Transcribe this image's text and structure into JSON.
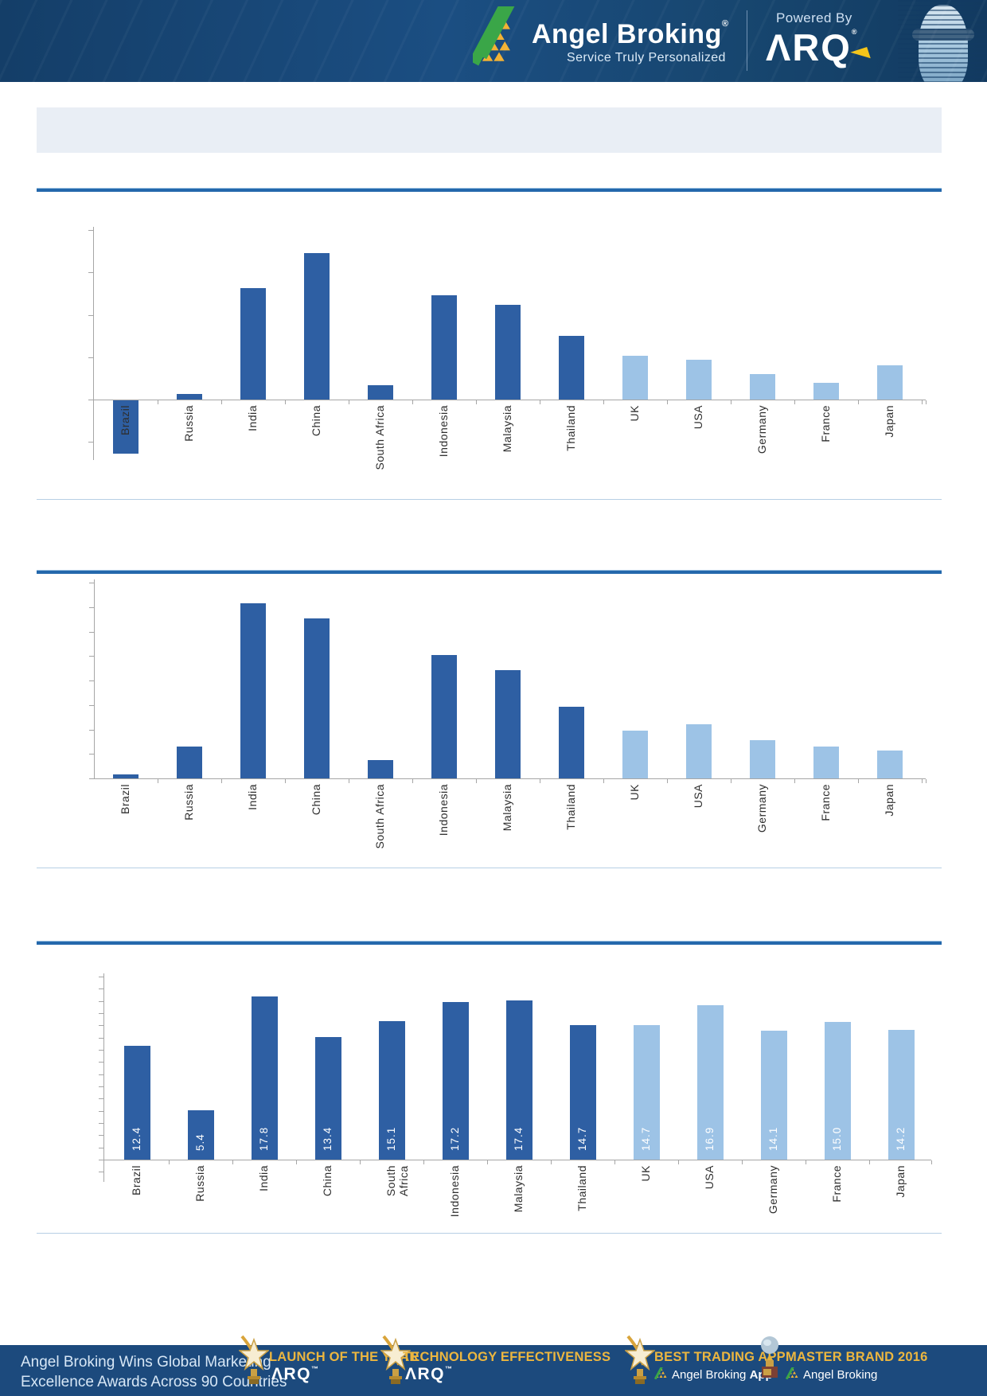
{
  "header": {
    "brand": "Angel Broking",
    "brand_reg": "®",
    "tagline": "Service Truly Personalized",
    "powered_by": "Powered By",
    "arq_logo": "ΛRQ",
    "arq_reg": "®"
  },
  "banner": {
    "text": ""
  },
  "chart_data": [
    {
      "type": "bar",
      "title": "",
      "categories": [
        "Brazil",
        "Russia",
        "India",
        "China",
        "South Africa",
        "Indonesia",
        "Malaysia",
        "Thailand",
        "UK",
        "USA",
        "Germany",
        "France",
        "Japan"
      ],
      "values": [
        -1.25,
        0.13,
        2.63,
        3.45,
        0.34,
        2.46,
        2.23,
        1.5,
        1.03,
        0.94,
        0.6,
        0.39,
        0.81
      ],
      "ylim": [
        -2,
        4
      ],
      "ytick_interval": 1,
      "axis_tick_labels_visible": false,
      "value_labels": false,
      "grid": false,
      "legend": "none",
      "bar_color_dark": "#2e5fa3",
      "bar_color_light": "#9dc3e6",
      "light_from_index": 8,
      "values_estimated_from_ticks": true
    },
    {
      "type": "bar",
      "title": "",
      "categories": [
        "Brazil",
        "Russia",
        "India",
        "China",
        "South Africa",
        "Indonesia",
        "Malaysia",
        "Thailand",
        "UK",
        "USA",
        "Germany",
        "France",
        "Japan"
      ],
      "values": [
        0.16,
        1.3,
        7.15,
        6.54,
        0.75,
        5.04,
        4.42,
        2.93,
        1.95,
        2.21,
        1.56,
        1.3,
        1.14
      ],
      "ylim": [
        0,
        8
      ],
      "ytick_interval": 1,
      "axis_tick_labels_visible": false,
      "value_labels": false,
      "grid": false,
      "legend": "none",
      "bar_color_dark": "#2e5fa3",
      "bar_color_light": "#9dc3e6",
      "light_from_index": 8,
      "values_estimated_from_ticks": true
    },
    {
      "type": "bar",
      "title": "",
      "categories": [
        "Brazil",
        "Russia",
        "India",
        "China",
        "South Africa",
        "Indonesia",
        "Malaysia",
        "Thailand",
        "UK",
        "USA",
        "Germany",
        "France",
        "Japan"
      ],
      "values": [
        12.4,
        5.4,
        17.8,
        13.4,
        15.1,
        17.2,
        17.4,
        14.7,
        14.7,
        16.9,
        14.1,
        15.0,
        14.2
      ],
      "value_label_texts": [
        "12.4",
        "5.4",
        "17.8",
        "13.4",
        "15.1",
        "17.2",
        "17.4",
        "14.7",
        "14.7",
        "16.9",
        "14.1",
        "15.0",
        "14.2"
      ],
      "ylim": [
        0,
        20
      ],
      "axis_tick_labels_visible": false,
      "value_labels": true,
      "wrap_labels": true,
      "grid": false,
      "legend": "none",
      "bar_color_dark": "#2e5fa3",
      "bar_color_light": "#9dc3e6",
      "light_from_index": 8
    }
  ],
  "footer": {
    "headline_line1": "Angel Broking Wins Global Marketing",
    "headline_line2": "Excellence Awards Across 90 Countries",
    "awards": [
      {
        "title": "LAUNCH OF THE YEAR",
        "subtitle": "ΛRQ",
        "subtitle_sup": "™",
        "icon": "star-trophy",
        "subtitle_logo": false
      },
      {
        "title": "TECHNOLOGY EFFECTIVENESS",
        "subtitle": "ΛRQ",
        "subtitle_sup": "™",
        "icon": "star-trophy",
        "subtitle_logo": false
      },
      {
        "title": "BEST TRADING APP",
        "subtitle": "Angel Broking App",
        "subtitle_bold_word": "App",
        "icon": "star-trophy",
        "subtitle_logo": true
      },
      {
        "title": "MASTER BRAND 2016",
        "subtitle": "Angel Broking",
        "icon": "globe-trophy",
        "subtitle_logo": true
      }
    ]
  },
  "colors": {
    "bar_dark": "#2e5fa3",
    "bar_light": "#9dc3e6",
    "axis_gray": "#a6a6a6",
    "section_rule": "#2468ac",
    "section_rule_light": "#b7cfe5",
    "header_bg": "#17466f",
    "banner_bg": "#e9eef5",
    "footer_bg": "#1c4a7d",
    "award_gold": "#ecb63f",
    "logo_gold": "#f2b234",
    "logo_green": "#3aa648",
    "arq_arrow_yellow": "#f5c51a"
  }
}
